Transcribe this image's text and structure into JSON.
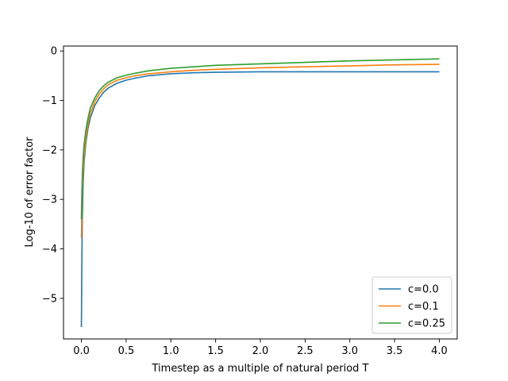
{
  "chart_data": {
    "type": "line",
    "xlabel": "Timestep as a multiple of natural period T",
    "ylabel": "Log-10 of error factor",
    "xlim": [
      -0.2,
      4.2
    ],
    "ylim": [
      -5.82,
      0.1
    ],
    "xticks": [
      0.0,
      0.5,
      1.0,
      1.5,
      2.0,
      2.5,
      3.0,
      3.5,
      4.0
    ],
    "xtick_labels": [
      "0.0",
      "0.5",
      "1.0",
      "1.5",
      "2.0",
      "2.5",
      "3.0",
      "3.5",
      "4.0"
    ],
    "yticks": [
      0,
      -1,
      -2,
      -3,
      -4,
      -5
    ],
    "ytick_labels": [
      "0",
      "−1",
      "−2",
      "−3",
      "−4",
      "−5"
    ],
    "grid": false,
    "legend_position": "lower-right",
    "series": [
      {
        "name": "c=0.0",
        "color": "#1f77b4",
        "x": [
          0.0,
          0.005,
          0.01,
          0.02,
          0.03,
          0.05,
          0.075,
          0.1,
          0.15,
          0.2,
          0.25,
          0.3,
          0.4,
          0.5,
          0.6,
          0.75,
          1.0,
          1.25,
          1.5,
          2.0,
          2.5,
          3.0,
          3.5,
          4.0
        ],
        "y": [
          -5.58,
          -4.3,
          -3.4,
          -2.65,
          -2.25,
          -1.85,
          -1.55,
          -1.35,
          -1.1,
          -0.95,
          -0.83,
          -0.75,
          -0.65,
          -0.59,
          -0.55,
          -0.5,
          -0.46,
          -0.44,
          -0.43,
          -0.42,
          -0.42,
          -0.42,
          -0.42,
          -0.42
        ]
      },
      {
        "name": "c=0.1",
        "color": "#ff7f0e",
        "x": [
          0.0,
          0.005,
          0.01,
          0.02,
          0.03,
          0.05,
          0.075,
          0.1,
          0.15,
          0.2,
          0.25,
          0.3,
          0.4,
          0.5,
          0.6,
          0.75,
          1.0,
          1.25,
          1.5,
          2.0,
          2.5,
          3.0,
          3.5,
          4.0
        ],
        "y": [
          -3.78,
          -3.2,
          -2.8,
          -2.4,
          -2.1,
          -1.75,
          -1.45,
          -1.25,
          -1.02,
          -0.87,
          -0.76,
          -0.68,
          -0.59,
          -0.54,
          -0.5,
          -0.46,
          -0.42,
          -0.39,
          -0.37,
          -0.34,
          -0.32,
          -0.3,
          -0.28,
          -0.27
        ]
      },
      {
        "name": "c=0.25",
        "color": "#2ca02c",
        "x": [
          0.0,
          0.005,
          0.01,
          0.02,
          0.03,
          0.05,
          0.075,
          0.1,
          0.15,
          0.2,
          0.25,
          0.3,
          0.4,
          0.5,
          0.6,
          0.75,
          1.0,
          1.25,
          1.5,
          2.0,
          2.5,
          3.0,
          3.5,
          4.0
        ],
        "y": [
          -3.4,
          -2.9,
          -2.55,
          -2.15,
          -1.9,
          -1.6,
          -1.35,
          -1.15,
          -0.95,
          -0.8,
          -0.7,
          -0.63,
          -0.54,
          -0.49,
          -0.45,
          -0.4,
          -0.35,
          -0.32,
          -0.29,
          -0.26,
          -0.23,
          -0.2,
          -0.18,
          -0.16
        ]
      }
    ]
  }
}
